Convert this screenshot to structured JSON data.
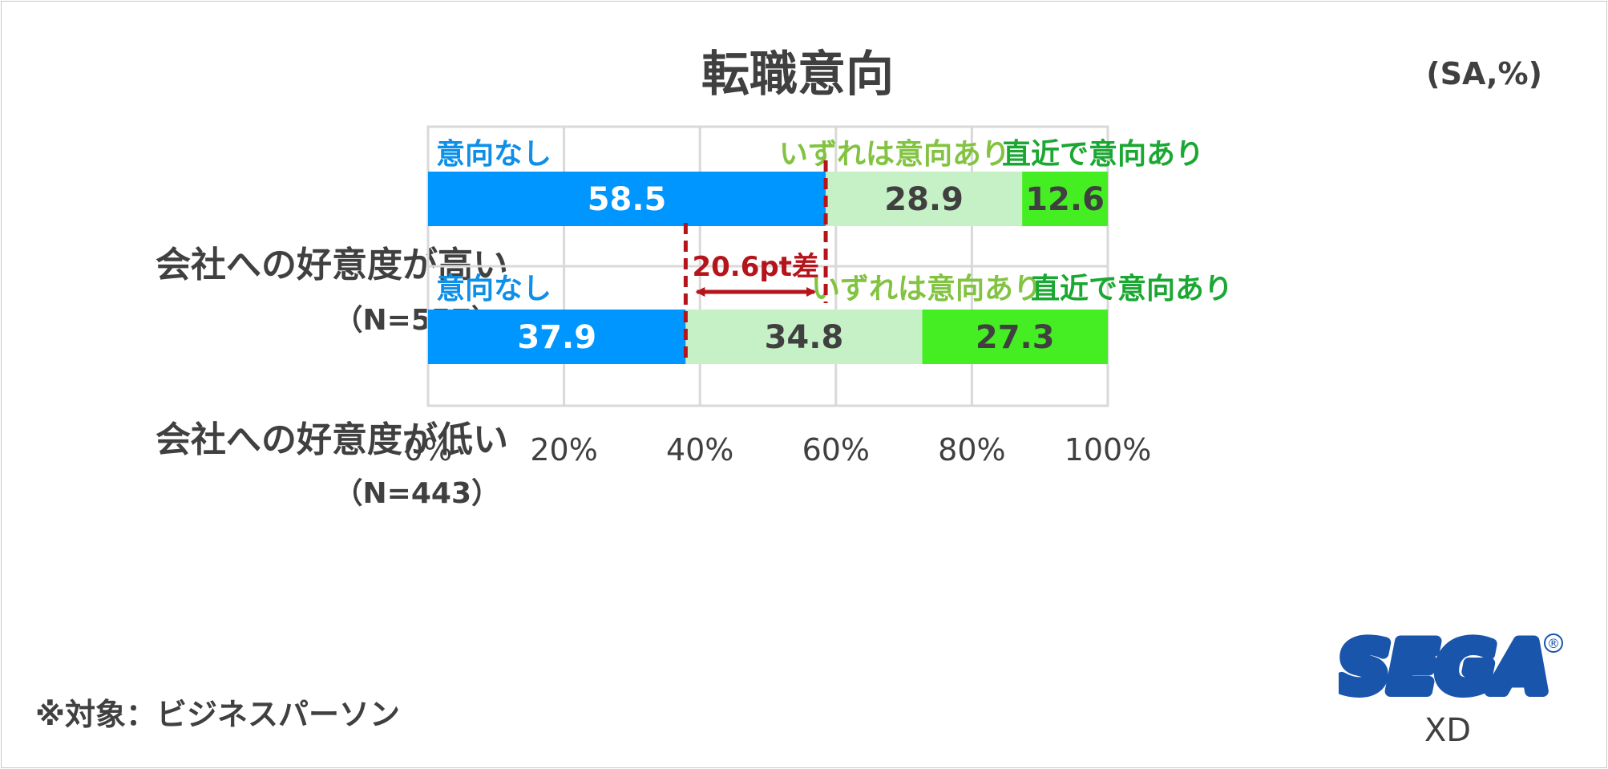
{
  "title": "転職意向",
  "unit": "(SA,%)",
  "note": "※対象：ビジネスパーソン",
  "logo": {
    "brand": "SEGA",
    "sub": "XD",
    "mark": "®"
  },
  "colors": {
    "none": "#0096ff",
    "someday": "#c6f0c6",
    "soon": "#44ee22",
    "label_none": "#0e8fe8",
    "label_someday": "#82c341",
    "label_soon": "#1aa832",
    "diff": "#b5141b",
    "text_dark": "#404040",
    "grid": "#d9d9d9",
    "logo_blue": "#1a55ac"
  },
  "rows": [
    {
      "label": "会社への好意度が高い",
      "n": "（N=557）"
    },
    {
      "label": "会社への好意度が低い",
      "n": "（N=443）"
    }
  ],
  "annotation": {
    "text": "20.6pt差",
    "from": 37.9,
    "to": 58.5
  },
  "chart_data": {
    "type": "bar",
    "orientation": "horizontal",
    "stacked": true,
    "categories": [
      "会社への好意度が高い",
      "会社への好意度が低い"
    ],
    "series": [
      {
        "name": "意向なし",
        "values": [
          58.5,
          37.9
        ]
      },
      {
        "name": "いずれは意向あり",
        "values": [
          28.9,
          34.8
        ]
      },
      {
        "name": "直近で意向あり",
        "values": [
          12.6,
          27.3
        ]
      }
    ],
    "xlim": [
      0,
      100
    ],
    "xticks": [
      "0%",
      "20%",
      "40%",
      "60%",
      "80%",
      "100%"
    ],
    "grid": true,
    "legend": "labels above each bar"
  }
}
